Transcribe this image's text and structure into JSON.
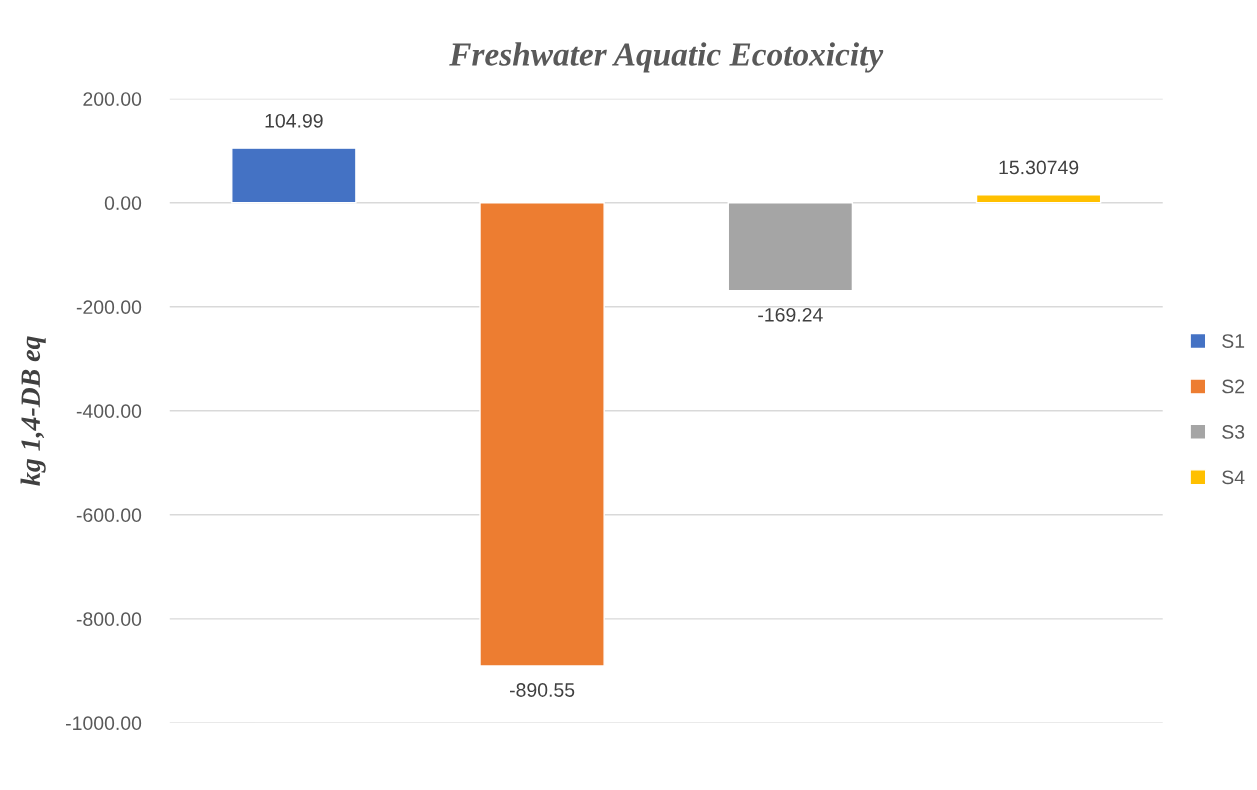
{
  "chart_data": {
    "type": "bar",
    "title": "Freshwater Aquatic Ecotoxicity",
    "ylabel": "kg 1,4-DB eq",
    "categories": [
      null
    ],
    "series": [
      {
        "name": "S1",
        "color": "#4472c4",
        "values": [
          104.99
        ]
      },
      {
        "name": "S2",
        "color": "#ed7d31",
        "values": [
          -890.55
        ]
      },
      {
        "name": "S3",
        "color": "#a5a5a5",
        "values": [
          -169.24
        ]
      },
      {
        "name": "S4",
        "color": "#ffc000",
        "values": [
          15.30749
        ]
      }
    ],
    "ylim": [
      -1000,
      200
    ],
    "yticks": [
      {
        "value": -1000,
        "label": "-1000.00"
      },
      {
        "value": -800,
        "label": "-800.00"
      },
      {
        "value": -600,
        "label": "-600.00"
      },
      {
        "value": -400,
        "label": "-400.00"
      },
      {
        "value": -200,
        "label": "-200.00"
      },
      {
        "value": 0,
        "label": "0.00"
      },
      {
        "value": 200,
        "label": "200.00"
      }
    ],
    "grid": "y",
    "legend": "right",
    "data_labels": true
  }
}
